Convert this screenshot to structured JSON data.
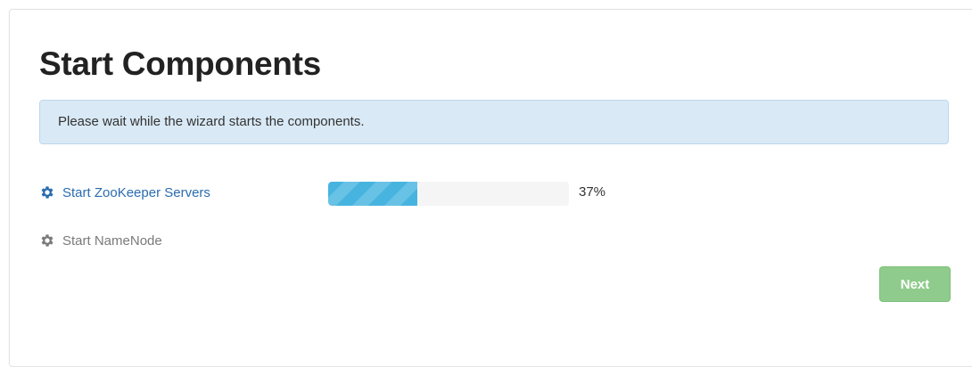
{
  "page": {
    "title": "Start Components",
    "notice": "Please wait while the wizard starts the components."
  },
  "tasks": [
    {
      "label": "Start ZooKeeper Servers",
      "icon": "gear-icon",
      "status": "in-progress",
      "color": "#2a6cb0",
      "progress_percent": 37,
      "progress_label": "37%"
    },
    {
      "label": "Start NameNode",
      "icon": "gear-icon",
      "status": "pending",
      "color": "#7a7a7a"
    }
  ],
  "actions": {
    "next_label": "Next",
    "next_color": "#8fcb8c"
  },
  "colors": {
    "notice_background": "#d9e9f5",
    "progress_fill": "#47b4df"
  }
}
